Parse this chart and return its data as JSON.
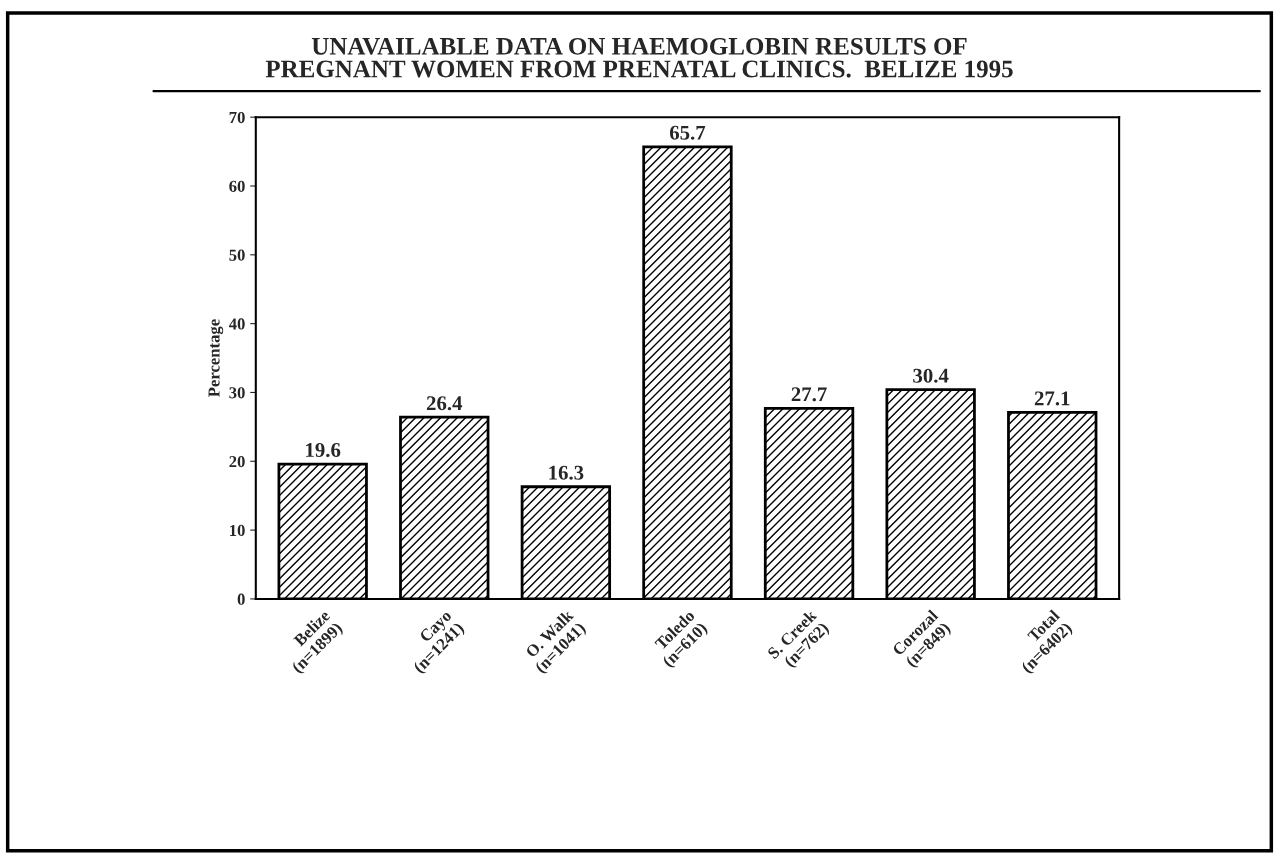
{
  "chart_data": {
    "type": "bar",
    "title": "UNAVAILABLE DATA ON HAEMOGLOBIN RESULTS OF\nPREGNANT WOMEN FROM PRENATAL CLINICS.  BELIZE 1995",
    "ylabel": "Percentage",
    "categories": [
      "Belize\n(n=1899)",
      "Cayo\n(n=1241)",
      "O. Walk\n(n=1041)",
      "Toledo\n(n=610)",
      "S. Creek\n(n=762)",
      "Corozal\n(n=849)",
      "Total\n(n=6402)"
    ],
    "values": [
      19.6,
      26.4,
      16.3,
      65.7,
      27.7,
      30.4,
      27.1
    ],
    "color": "#000000",
    "data_labels": true,
    "ylim": [
      0,
      70
    ],
    "yticks": [
      0,
      10,
      20,
      30,
      40,
      50,
      60,
      70
    ],
    "grid": false,
    "legend": false
  }
}
